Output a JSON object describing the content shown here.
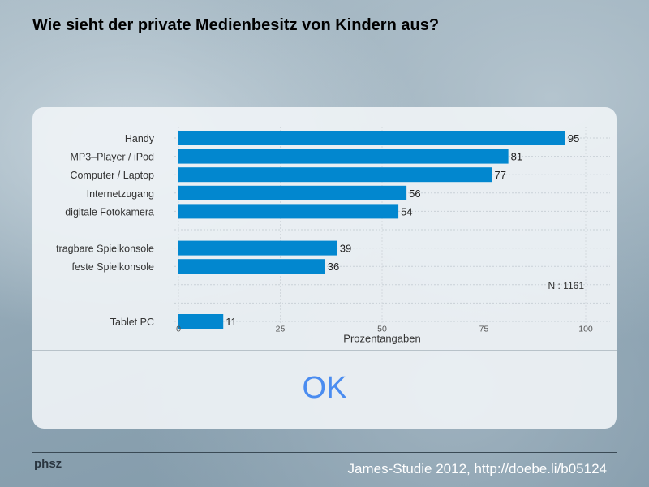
{
  "title": "Wie sieht der private Medienbesitz von Kindern aus?",
  "ok_label": "OK",
  "footer": {
    "logo": "phsz",
    "source": "James-Studie 2012, http://doebe.li/b05124"
  },
  "colors": {
    "bar": "#0287cf",
    "ok": "#4a8cf0"
  },
  "chart_data": {
    "type": "bar",
    "orientation": "horizontal",
    "categories": [
      "Handy",
      "MP3–Player / iPod",
      "Computer / Laptop",
      "Internetzugang",
      "digitale Fotokamera",
      "",
      "tragbare Spielkonsole",
      "feste Spielkonsole",
      "",
      "Tablet PC"
    ],
    "values": [
      95,
      81,
      77,
      56,
      54,
      null,
      39,
      36,
      null,
      11
    ],
    "xlabel": "Prozentangaben",
    "xlim": [
      0,
      100
    ],
    "xticks": [
      0,
      25,
      50,
      75,
      100
    ],
    "annotation": "N : 1161",
    "grid": true
  }
}
